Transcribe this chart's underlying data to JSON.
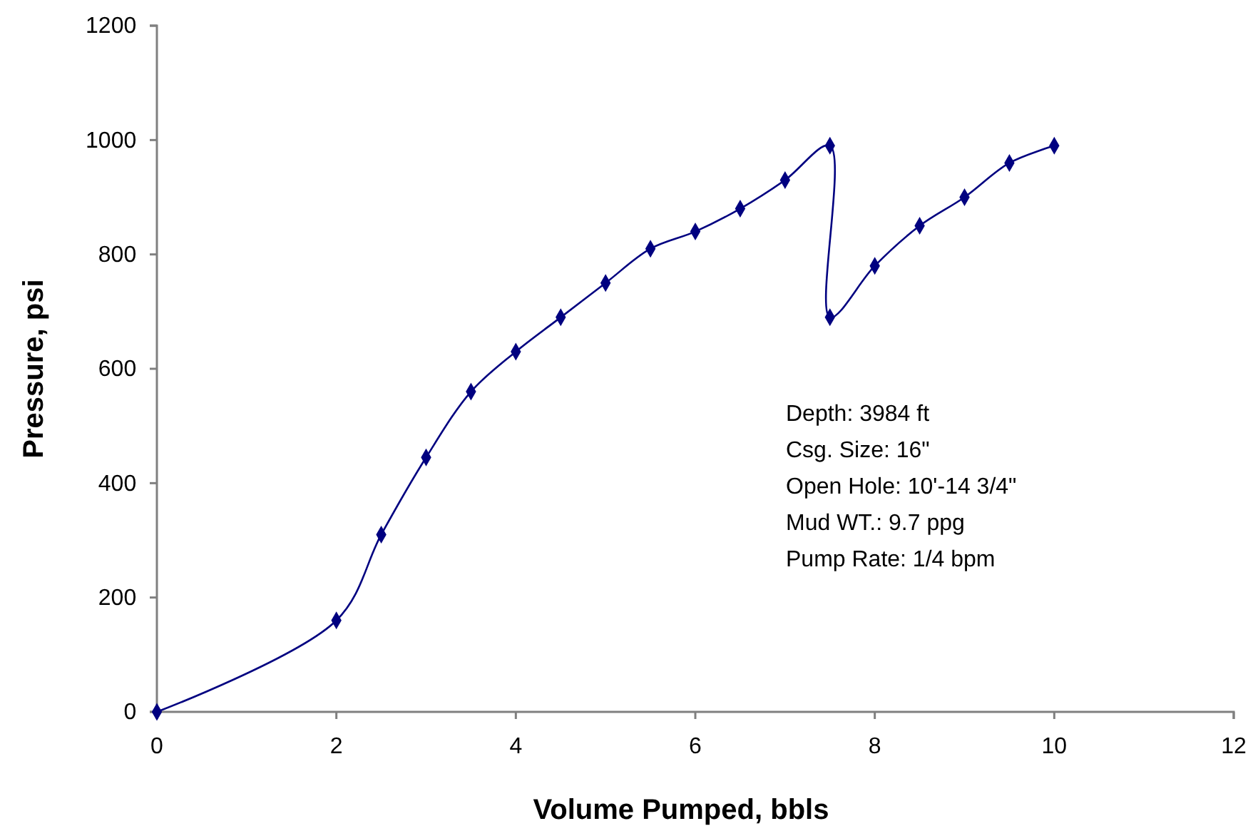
{
  "chart_data": {
    "type": "line",
    "xlabel": "Volume Pumped, bbls",
    "ylabel": "Pressure, psi",
    "x": [
      0,
      2,
      2.5,
      3,
      3.5,
      4,
      4.5,
      5,
      5.5,
      6,
      6.5,
      7,
      7.5,
      7.5,
      8,
      8.5,
      9,
      9.5,
      10
    ],
    "series": [
      {
        "color": "#000080",
        "values": [
          0,
          160,
          310,
          445,
          560,
          630,
          690,
          750,
          810,
          840,
          880,
          930,
          990,
          690,
          780,
          850,
          900,
          960,
          990
        ]
      }
    ],
    "xlim": [
      0,
      12
    ],
    "xticks": [
      0,
      2,
      4,
      6,
      8,
      10,
      12
    ],
    "ylim": [
      0,
      1200
    ],
    "yticks": [
      0,
      200,
      400,
      600,
      800,
      1000,
      1200
    ],
    "grid": false,
    "marker": "diamond",
    "line_style": "solid",
    "annotations": [
      {
        "text": "Depth: 3984 ft"
      },
      {
        "text": "Csg. Size: 16\""
      },
      {
        "text": "Open Hole: 10'-14 3/4\""
      },
      {
        "text": "Mud WT.: 9.7 ppg"
      },
      {
        "text": "Pump Rate: 1/4 bpm"
      }
    ]
  }
}
